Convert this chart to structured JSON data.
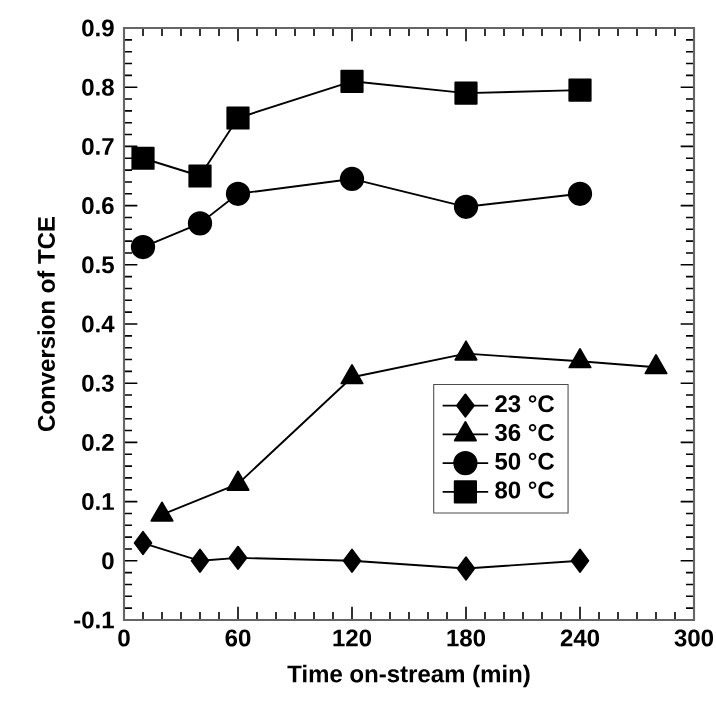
{
  "chart_data": {
    "type": "line",
    "xlabel": "Time on-stream (min)",
    "ylabel": "Conversion of TCE",
    "xlim": [
      0,
      300
    ],
    "xticks": [
      0,
      60,
      120,
      180,
      240,
      300
    ],
    "ylim": [
      -0.1,
      0.9
    ],
    "yticks": [
      -0.1,
      0,
      0.1,
      0.2,
      0.3,
      0.4,
      0.5,
      0.6,
      0.7,
      0.8,
      0.9
    ],
    "legend": "center right",
    "grid": false,
    "line_style": "solid",
    "series": [
      {
        "name": "23 °C",
        "color": "#000000",
        "marker": "diamond",
        "x": [
          10,
          40,
          60,
          120,
          180,
          240
        ],
        "values": [
          0.03,
          0.0,
          0.005,
          0.0,
          -0.013,
          0.0
        ]
      },
      {
        "name": "36 °C",
        "color": "#000000",
        "marker": "triangle",
        "x": [
          20,
          60,
          120,
          180,
          240,
          280
        ],
        "values": [
          0.078,
          0.13,
          0.31,
          0.35,
          0.337,
          0.327
        ]
      },
      {
        "name": "50 °C",
        "color": "#000000",
        "marker": "circle",
        "x": [
          10,
          40,
          60,
          120,
          180,
          240
        ],
        "values": [
          0.53,
          0.57,
          0.62,
          0.645,
          0.598,
          0.62
        ]
      },
      {
        "name": "80 °C",
        "color": "#000000",
        "marker": "square",
        "x": [
          10,
          40,
          60,
          120,
          180,
          240
        ],
        "values": [
          0.68,
          0.65,
          0.748,
          0.81,
          0.79,
          0.795
        ]
      }
    ]
  }
}
